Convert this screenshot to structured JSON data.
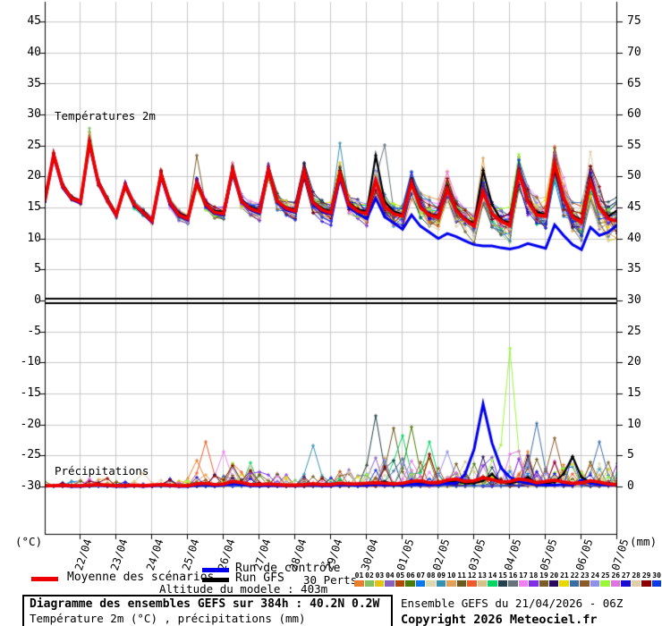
{
  "panel_labels": {
    "temperature": "Températures 2m",
    "precipitation": "Précipitations"
  },
  "axes": {
    "left_unit": "(°C)",
    "right_unit": "(mm)",
    "left_ticks": [
      45,
      40,
      35,
      30,
      25,
      20,
      15,
      10,
      5,
      0,
      -5,
      -10,
      -15,
      -20,
      -25,
      -30
    ],
    "right_ticks": [
      75,
      70,
      65,
      60,
      55,
      50,
      45,
      40,
      35,
      30,
      25,
      20,
      15,
      10,
      5,
      0
    ],
    "x_labels": [
      "22/04",
      "23/04",
      "24/04",
      "25/04",
      "26/04",
      "27/04",
      "28/04",
      "29/04",
      "30/04",
      "01/05",
      "02/05",
      "03/05",
      "04/05",
      "05/05",
      "06/05",
      "07/05"
    ]
  },
  "legend": {
    "mean": {
      "label": "Moyenne des scénarios",
      "color": "#ee0000"
    },
    "control": {
      "label": "Run de contrôle",
      "color": "#0000ee"
    },
    "gfs": {
      "label": "Run GFS",
      "color": "#000000"
    }
  },
  "perturbations": {
    "label": "30 Perts.",
    "numbers": [
      "01",
      "02",
      "03",
      "04",
      "05",
      "06",
      "07",
      "08",
      "09",
      "10",
      "11",
      "12",
      "13",
      "14",
      "15",
      "16",
      "17",
      "18",
      "19",
      "20",
      "21",
      "22",
      "23",
      "24",
      "25",
      "26",
      "27",
      "28",
      "29",
      "30"
    ],
    "colors": [
      "#e87f2a",
      "#84c064",
      "#e3c410",
      "#8860c0",
      "#b04808",
      "#4a7a08",
      "#0878f0",
      "#ded8b0",
      "#3890b0",
      "#e0a058",
      "#6b5a1e",
      "#f05a28",
      "#d6c289",
      "#00d664",
      "#24424e",
      "#66737a",
      "#ee82ee",
      "#7f2fe8",
      "#7a5c28",
      "#2a0a5e",
      "#e8d800",
      "#3a6ea5",
      "#8a5a2a",
      "#9090e8",
      "#98f838",
      "#df73df",
      "#1a0ad4",
      "#ddd0a8",
      "#8a0000",
      "#0a3ae8"
    ]
  },
  "info": {
    "altitude": "Altitude du modele : 403m"
  },
  "footer": {
    "title": "Diagramme des ensembles GEFS sur 384h : 40.2N 0.2W",
    "subtitle": "Température 2m (°C) , précipitations (mm)",
    "run": "Ensemble GEFS du 21/04/2026 - 06Z",
    "copyright": "Copyright 2026 Meteociel.fr"
  },
  "chart_data": {
    "type": "line",
    "title": "Diagramme des ensembles GEFS sur 384h : 40.2N 0.2W",
    "x": {
      "run_start": "21/04/2026 06Z",
      "hours_total": 384,
      "step_hours": 6,
      "day_labels": [
        "22/04",
        "23/04",
        "24/04",
        "25/04",
        "26/04",
        "27/04",
        "28/04",
        "29/04",
        "30/04",
        "01/05",
        "02/05",
        "03/05",
        "04/05",
        "05/05",
        "06/05",
        "07/05"
      ]
    },
    "temperature_c": {
      "axis_ticks": [
        45,
        40,
        35,
        30,
        25,
        20,
        15,
        10,
        5,
        0
      ],
      "mean": [
        16.0,
        23.5,
        18.5,
        16.5,
        15.9,
        25.5,
        19.0,
        16.2,
        13.8,
        18.6,
        15.5,
        14.2,
        12.8,
        20.4,
        15.8,
        13.8,
        13.2,
        19.0,
        15.5,
        14.2,
        14.0,
        21.1,
        16.0,
        14.8,
        14.3,
        21.1,
        16.0,
        14.9,
        14.4,
        20.9,
        15.8,
        14.6,
        14.1,
        20.4,
        15.5,
        14.4,
        14.0,
        19.4,
        15.2,
        14.0,
        13.6,
        19.0,
        15.0,
        13.8,
        13.4,
        18.0,
        14.5,
        13.0,
        12.0,
        17.6,
        14.0,
        12.8,
        12.1,
        20.7,
        16.0,
        13.8,
        13.6,
        22.1,
        16.5,
        13.5,
        12.6,
        19.2,
        15.0,
        13.2,
        12.8
      ],
      "control": [
        16.0,
        23.2,
        18.2,
        16.3,
        15.7,
        25.2,
        18.8,
        16.0,
        13.6,
        18.9,
        15.3,
        14.0,
        12.6,
        20.0,
        15.5,
        13.6,
        13.0,
        19.3,
        15.2,
        14.0,
        13.8,
        20.8,
        15.8,
        14.6,
        14.0,
        21.4,
        15.8,
        14.6,
        14.2,
        20.5,
        15.5,
        14.3,
        13.9,
        19.8,
        15.0,
        14.0,
        13.2,
        16.5,
        13.5,
        12.5,
        11.5,
        13.8,
        12.0,
        11.0,
        10.0,
        10.8,
        10.3,
        9.6,
        9.0,
        8.8,
        8.8,
        8.5,
        8.3,
        8.6,
        9.2,
        8.8,
        8.4,
        12.2,
        10.5,
        9.0,
        8.2,
        11.8,
        10.5,
        11.0,
        12.2
      ],
      "gfs": [
        16.0,
        23.8,
        18.8,
        16.7,
        16.1,
        25.8,
        19.3,
        16.5,
        14.0,
        18.2,
        15.2,
        14.5,
        13.0,
        20.8,
        16.0,
        14.1,
        13.5,
        18.6,
        15.6,
        14.5,
        14.3,
        21.5,
        16.2,
        15.0,
        14.6,
        20.6,
        15.9,
        15.0,
        14.7,
        21.4,
        16.0,
        14.9,
        14.4,
        21.0,
        15.8,
        14.7,
        14.3,
        23.4,
        16.0,
        14.4,
        13.9,
        19.6,
        15.2,
        14.0,
        13.7,
        18.5,
        14.8,
        13.2,
        12.4,
        21.0,
        15.5,
        13.0,
        12.5,
        21.2,
        16.2,
        14.2,
        14.0,
        21.0,
        16.3,
        13.8,
        13.0,
        19.8,
        15.2,
        13.6,
        14.5
      ]
    },
    "precipitation_mm": {
      "axis_ticks": [
        30,
        25,
        20,
        15,
        10,
        5,
        0
      ],
      "mean": [
        0.1,
        0.1,
        0.2,
        0.1,
        0.1,
        0.2,
        0.3,
        0.2,
        0.1,
        0.1,
        0.2,
        0.1,
        0.2,
        0.3,
        0.2,
        0.1,
        0.1,
        0.4,
        0.5,
        0.3,
        0.4,
        0.8,
        0.6,
        0.3,
        0.3,
        0.4,
        0.3,
        0.2,
        0.2,
        0.3,
        0.4,
        0.3,
        0.3,
        0.5,
        0.4,
        0.4,
        0.5,
        0.6,
        0.5,
        0.4,
        0.5,
        0.8,
        0.9,
        0.6,
        0.6,
        1.0,
        1.2,
        0.8,
        0.9,
        1.4,
        1.1,
        0.7,
        0.8,
        1.2,
        1.0,
        0.6,
        0.8,
        1.0,
        0.7,
        0.5,
        0.6,
        0.9,
        0.7,
        0.4,
        0.3
      ],
      "control": [
        0.0,
        0.1,
        0.1,
        0.0,
        0.0,
        0.1,
        0.2,
        0.1,
        0.0,
        0.0,
        0.1,
        0.0,
        0.1,
        0.2,
        0.1,
        0.0,
        0.0,
        0.2,
        0.3,
        0.1,
        0.2,
        0.4,
        0.3,
        0.1,
        0.1,
        0.2,
        0.1,
        0.1,
        0.1,
        0.2,
        0.2,
        0.1,
        0.1,
        0.3,
        0.2,
        0.2,
        0.2,
        0.3,
        0.2,
        0.2,
        0.2,
        0.4,
        0.3,
        0.2,
        0.3,
        0.5,
        0.5,
        2.0,
        6.0,
        13.3,
        7.0,
        3.0,
        1.5,
        0.8,
        0.5,
        0.3,
        0.2,
        0.2,
        0.3,
        0.2,
        1.0,
        0.5,
        0.3,
        0.2,
        0.2
      ],
      "gfs": [
        0.0,
        0.1,
        0.1,
        0.1,
        0.1,
        0.1,
        0.2,
        0.1,
        0.1,
        0.1,
        0.1,
        0.1,
        0.1,
        0.2,
        0.2,
        0.1,
        0.1,
        0.3,
        0.3,
        0.2,
        0.3,
        0.6,
        0.4,
        0.2,
        0.2,
        0.3,
        0.2,
        0.1,
        0.1,
        0.2,
        0.3,
        0.2,
        0.2,
        0.4,
        0.3,
        0.3,
        0.3,
        0.5,
        0.8,
        0.3,
        0.3,
        0.6,
        0.5,
        0.4,
        0.4,
        0.7,
        0.8,
        0.5,
        0.5,
        0.9,
        2.0,
        0.6,
        0.5,
        0.8,
        1.5,
        0.5,
        0.5,
        0.7,
        2.0,
        4.8,
        1.5,
        0.6,
        0.4,
        0.3,
        0.2
      ]
    },
    "ensemble": {
      "member_count": 30,
      "temperature_spread_c": {
        "start": 0.35,
        "end": 3.0
      },
      "precip_day_activity": [
        0.1,
        0.15,
        0.1,
        0.15,
        0.25,
        0.55,
        0.3,
        0.25,
        0.35,
        0.6,
        0.65,
        0.5,
        0.6,
        0.75,
        0.6,
        0.5
      ],
      "temperature_member_extremes": [
        [
          2,
          5,
          27.8
        ],
        [
          1,
          5,
          27.2
        ],
        [
          19,
          57,
          24.6
        ],
        [
          19,
          53,
          23.2
        ],
        [
          16,
          38,
          25.1
        ],
        [
          9,
          33,
          25.4
        ],
        [
          10,
          49,
          23.0
        ],
        [
          13,
          57,
          24.3
        ],
        [
          19,
          17,
          23.4
        ],
        [
          25,
          53,
          23.6
        ],
        [
          28,
          61,
          24.0
        ]
      ],
      "precip_member_spikes": [
        [
          15,
          37,
          11.4
        ],
        [
          11,
          39,
          9.4
        ],
        [
          14,
          40,
          8.2
        ],
        [
          6,
          41,
          9.6
        ],
        [
          14,
          43,
          7.2
        ],
        [
          9,
          30,
          6.6
        ],
        [
          12,
          18,
          7.2
        ],
        [
          17,
          20,
          5.6
        ],
        [
          25,
          52,
          22.3
        ],
        [
          22,
          55,
          10.2
        ],
        [
          23,
          57,
          7.8
        ],
        [
          22,
          62,
          7.2
        ],
        [
          24,
          45,
          5.6
        ],
        [
          13,
          47,
          4.0
        ],
        [
          13,
          11,
          2.2
        ],
        [
          29,
          21,
          3.4
        ],
        [
          1,
          17,
          4.2
        ]
      ]
    }
  }
}
